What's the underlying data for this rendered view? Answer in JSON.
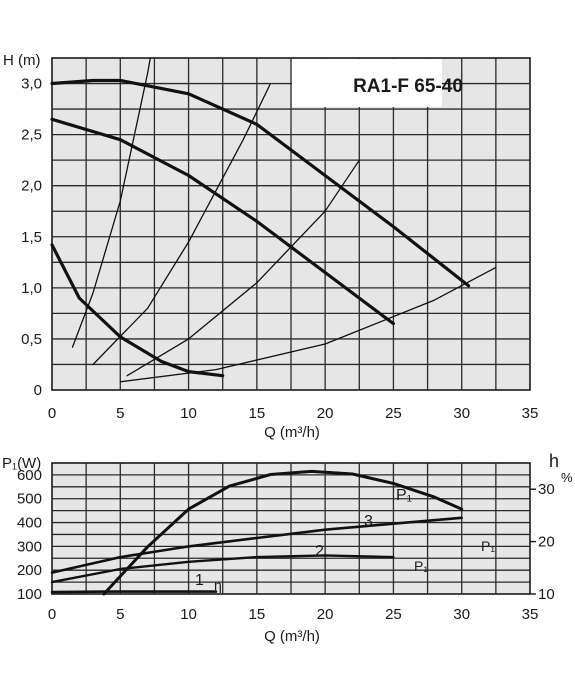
{
  "chart_data": [
    {
      "type": "line",
      "title": "RA1-F 65-40",
      "ylabel": "H (m)",
      "xlabel": "Q (m³/h)",
      "xlim": [
        0,
        35
      ],
      "ylim": [
        0,
        3.25
      ],
      "xticks": [
        "0",
        "5",
        "10",
        "15",
        "20",
        "25",
        "30",
        "35"
      ],
      "yticks": [
        "0",
        "0,5",
        "1,0",
        "1,5",
        "2,0",
        "2,5",
        "3,0"
      ],
      "grid": true,
      "series": [
        {
          "style": "pump",
          "x": [
            0,
            3,
            5,
            10,
            15,
            20,
            25,
            30.5
          ],
          "y": [
            3.0,
            3.03,
            3.03,
            2.9,
            2.6,
            2.1,
            1.6,
            1.02
          ]
        },
        {
          "style": "pump",
          "x": [
            0,
            5,
            10,
            15,
            20,
            25
          ],
          "y": [
            2.65,
            2.45,
            2.1,
            1.65,
            1.15,
            0.65
          ]
        },
        {
          "style": "pump",
          "x": [
            0,
            2,
            5,
            8,
            10,
            12.5
          ],
          "y": [
            1.42,
            0.9,
            0.52,
            0.28,
            0.18,
            0.14
          ]
        },
        {
          "style": "system",
          "x": [
            1.5,
            3,
            5,
            7,
            7.2
          ],
          "y": [
            0.42,
            0.95,
            1.85,
            3.1,
            3.25
          ]
        },
        {
          "style": "system",
          "x": [
            3,
            7,
            10,
            14,
            16
          ],
          "y": [
            0.25,
            0.8,
            1.45,
            2.45,
            3.0
          ]
        },
        {
          "style": "system",
          "x": [
            5.5,
            10,
            15,
            20,
            22.5
          ],
          "y": [
            0.14,
            0.5,
            1.05,
            1.75,
            2.25
          ]
        },
        {
          "style": "system",
          "x": [
            5,
            12,
            20,
            28,
            32.5
          ],
          "y": [
            0.08,
            0.2,
            0.45,
            0.88,
            1.2
          ]
        }
      ]
    },
    {
      "type": "line",
      "ylabel": "P₁(W)",
      "y2label": "h",
      "y2unit": "%",
      "xlabel": "Q (m³/h)",
      "xlim": [
        0,
        35
      ],
      "ylim": [
        100,
        650
      ],
      "y2lim": [
        10,
        35
      ],
      "xticks": [
        "0",
        "5",
        "10",
        "15",
        "20",
        "25",
        "30",
        "35"
      ],
      "yticks": [
        "100",
        "200",
        "300",
        "400",
        "500",
        "600"
      ],
      "y2ticks": [
        "10",
        "20",
        "30"
      ],
      "grid": true,
      "annotations": [
        "1",
        "2",
        "3",
        "P₁",
        "η",
        "P₁",
        "P₁"
      ],
      "series": [
        {
          "name": "P₁",
          "x": [
            0,
            4,
            8,
            12
          ],
          "y": [
            108,
            110,
            110,
            110
          ]
        },
        {
          "name": "P₁",
          "x": [
            0,
            5,
            10,
            15,
            20,
            25
          ],
          "y": [
            150,
            205,
            235,
            255,
            262,
            255
          ]
        },
        {
          "name": "P₁",
          "x": [
            0,
            5,
            10,
            15,
            20,
            25,
            30
          ],
          "y": [
            190,
            255,
            300,
            335,
            370,
            395,
            420
          ]
        },
        {
          "name": "η",
          "axis": "y2",
          "x": [
            3.8,
            7,
            10,
            13,
            16,
            19,
            22,
            25,
            28,
            30
          ],
          "y": [
            10,
            19,
            26.2,
            30.6,
            32.8,
            33.4,
            32.9,
            31.1,
            28.5,
            26.2
          ]
        }
      ]
    }
  ]
}
